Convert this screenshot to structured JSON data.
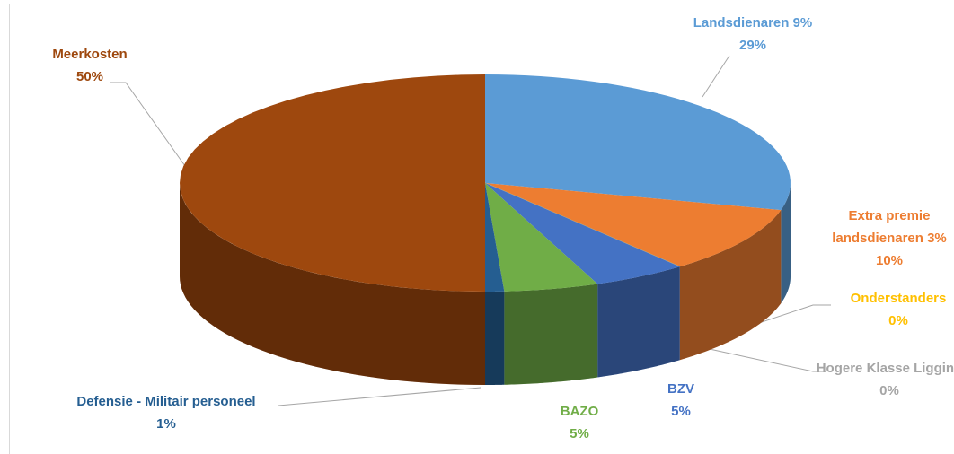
{
  "chart_data": {
    "type": "pie",
    "categories": [
      "Landsdienaren 9%",
      "Extra premie landsdienaren 3%",
      "Onderstanders",
      "Hogere Klasse Ligging",
      "BZV",
      "BAZO",
      "Defensie - Militair personeel",
      "Meerkosten"
    ],
    "values": [
      29,
      10,
      0,
      0,
      5,
      5,
      1,
      50
    ],
    "value_labels": [
      "29%",
      "10%",
      "0%",
      "0%",
      "5%",
      "5%",
      "1%",
      "50%"
    ],
    "colors": [
      "#5b9bd5",
      "#ed7d31",
      "#ffc000",
      "#a5a5a5",
      "#4472c4",
      "#70ad47",
      "#255e91",
      "#9e480e"
    ]
  }
}
